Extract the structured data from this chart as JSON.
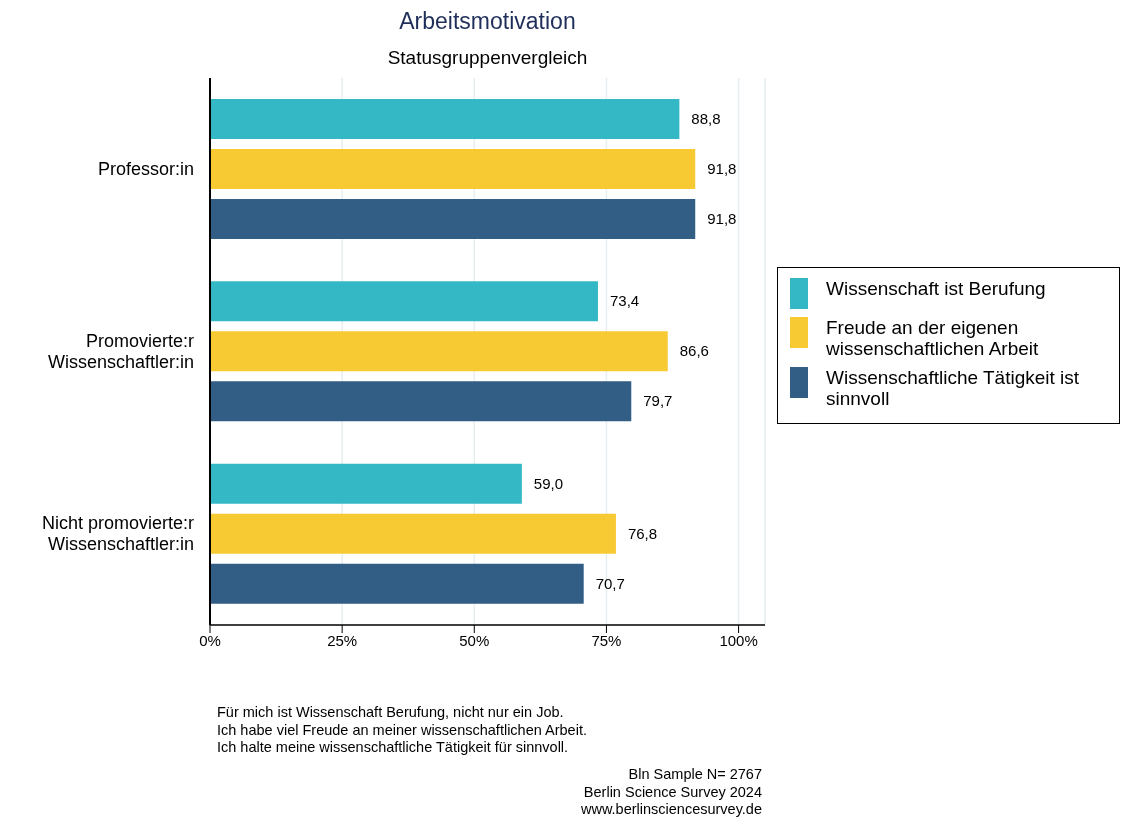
{
  "chart_data": {
    "type": "bar",
    "orientation": "horizontal",
    "title": "Arbeitsmotivation",
    "subtitle": "Statusgruppenvergleich",
    "categories": [
      "Professor:in",
      "Promovierte:r\nWissenschaftler:in",
      "Nicht promovierte:r\nWissenschaftler:in"
    ],
    "series": [
      {
        "name": "Wissenschaft ist Berufung",
        "color": "#35b8c6",
        "values": [
          88.8,
          73.4,
          59.0
        ],
        "value_labels": [
          "88,8",
          "73,4",
          "59,0"
        ]
      },
      {
        "name": "Freude an der eigenen wissenschaftlichen Arbeit",
        "color": "#f7c932",
        "values": [
          91.8,
          86.6,
          76.8
        ],
        "value_labels": [
          "91,8",
          "86,6",
          "76,8"
        ]
      },
      {
        "name": "Wissenschaftliche Tätigkeit ist sinnvoll",
        "color": "#325d85",
        "values": [
          91.8,
          79.7,
          70.7
        ],
        "value_labels": [
          "91,8",
          "79,7",
          "70,7"
        ]
      }
    ],
    "xlim": [
      0,
      105
    ],
    "xticks": [
      {
        "value": 0,
        "label": "0%"
      },
      {
        "value": 25,
        "label": "25%"
      },
      {
        "value": 50,
        "label": "50%"
      },
      {
        "value": 75,
        "label": "75%"
      },
      {
        "value": 100,
        "label": "100%"
      }
    ],
    "grid": "x",
    "legend": "right",
    "annotations": [
      "Für mich ist Wissenschaft Berufung, nicht nur ein Job.",
      "Ich habe viel Freude an meiner wissenschaftlichen Arbeit.",
      "Ich halte meine wissenschaftliche Tätigkeit für sinnvoll.",
      "Bln Sample N= 2767",
      "Berlin Science Survey 2024",
      "www.berlinsciencesurvey.de"
    ]
  }
}
